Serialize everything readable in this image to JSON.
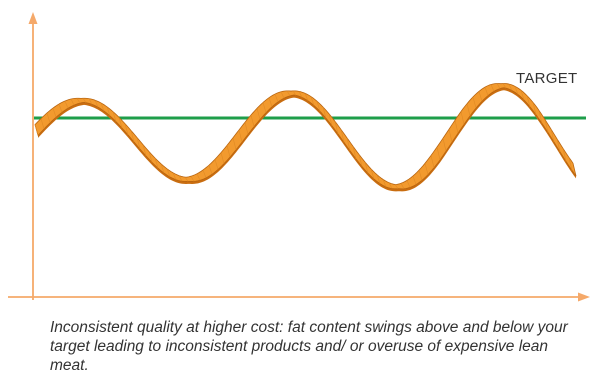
{
  "diagram": {
    "target_label": "TARGET",
    "caption": "Inconsistent quality at higher cost: fat content swings above and below your target leading to inconsistent products and/ or overuse of expensive lean meat.",
    "colors": {
      "axis": "#f5a96a",
      "target_line": "#1e9e4a",
      "ribbon_top": "#f29a2e",
      "ribbon_side": "#c96d10",
      "ribbon_edge": "#b8640f",
      "text": "#333333"
    }
  }
}
